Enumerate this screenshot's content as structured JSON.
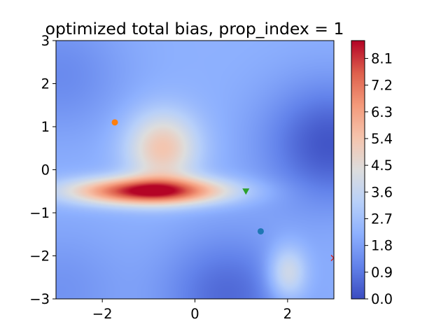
{
  "chart_data": {
    "type": "heatmap",
    "title": "optimized total bias, prop_index = 1",
    "xlabel": "",
    "ylabel": "",
    "xlim": [
      -3,
      3
    ],
    "ylim": [
      -3,
      3
    ],
    "x_ticks": [
      -2,
      0,
      2
    ],
    "x_tick_labels": [
      "−2",
      "0",
      "2"
    ],
    "y_ticks": [
      -3,
      -2,
      -1,
      0,
      1,
      2,
      3
    ],
    "y_tick_labels": [
      "−3",
      "−2",
      "−1",
      "0",
      "1",
      "2",
      "3"
    ],
    "colormap": "coolwarm",
    "colorbar": {
      "min": 0.0,
      "max": 8.7,
      "ticks": [
        0.0,
        0.9,
        1.8,
        2.7,
        3.6,
        4.5,
        5.4,
        6.3,
        7.2,
        8.1
      ],
      "tick_labels": [
        "0.0",
        "0.9",
        "1.8",
        "2.7",
        "3.6",
        "4.5",
        "5.4",
        "6.3",
        "7.2",
        "8.1"
      ]
    },
    "field_features": {
      "background_level": 2.2,
      "peak": {
        "x": -1.0,
        "y": -0.5,
        "value": 8.7,
        "sigma_x": 1.15,
        "sigma_y": 0.22
      },
      "upper_lobe": {
        "x": -0.7,
        "y": 0.5,
        "value": 3.2,
        "sigma_x": 0.55,
        "sigma_y": 0.6
      },
      "blob": {
        "x": 2.0,
        "y": -2.4,
        "value": 2.3,
        "sigma_x": 0.3,
        "sigma_y": 0.45
      },
      "low_regions": [
        {
          "x": 2.9,
          "y": 0.6,
          "value": -2.0
        },
        {
          "x": 0.7,
          "y": -2.9,
          "value": -1.6
        },
        {
          "x": -2.9,
          "y": 2.2,
          "value": -0.9
        },
        {
          "x": -2.9,
          "y": -2.8,
          "value": -0.7
        }
      ]
    },
    "markers": [
      {
        "name": "orange-point",
        "shape": "circle",
        "x": -1.73,
        "y": 1.1,
        "color": "#ff7f0e"
      },
      {
        "name": "green-triangle",
        "shape": "triangle-down",
        "x": 1.1,
        "y": -0.5,
        "color": "#2ca02c"
      },
      {
        "name": "blue-point",
        "shape": "circle",
        "x": 1.42,
        "y": -1.43,
        "color": "#1f77b4"
      },
      {
        "name": "red-x",
        "shape": "x",
        "x": 3.0,
        "y": -2.05,
        "color": "#d62728"
      }
    ]
  }
}
